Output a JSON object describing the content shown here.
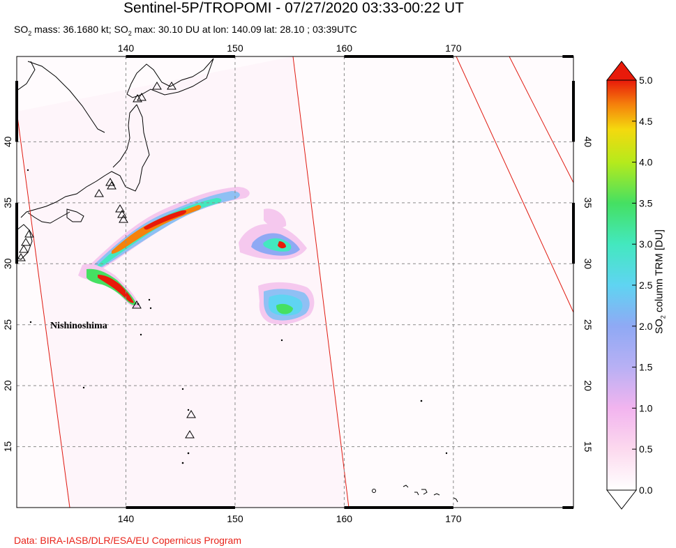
{
  "title": "Sentinel-5P/TROPOMI - 07/27/2020 03:33-00:22 UT",
  "subtitle": {
    "p1": "SO",
    "p1_sub": "2",
    "p2": " mass: 36.1680 kt; SO",
    "p2_sub": "2",
    "p3": " max: 30.10 DU at lon: 140.09 lat: 28.10 ; 03:39UTC"
  },
  "credit": "Data: BIRA-IASB/DLR/ESA/EU Copernicus Program",
  "map": {
    "lon_range": [
      130,
      181
    ],
    "lat_range": [
      10,
      47
    ],
    "lon_ticks": [
      "140",
      "150",
      "160",
      "170"
    ],
    "lon_tick_values": [
      140,
      150,
      160,
      170
    ],
    "lat_ticks": [
      "15",
      "20",
      "25",
      "30",
      "35",
      "40"
    ],
    "lat_tick_values": [
      15,
      20,
      25,
      30,
      35,
      40
    ],
    "volcano_label": "Nishinoshima",
    "volcano_icon": "triangle-icon",
    "orbit_edge_color": "#e01a10"
  },
  "colorbar": {
    "label_p1": "SO",
    "label_sub": "2",
    "label_p2": " column TRM [DU]",
    "ticks": [
      "0.0",
      "0.5",
      "1.0",
      "1.5",
      "2.0",
      "2.5",
      "3.0",
      "3.5",
      "4.0",
      "4.5",
      "5.0"
    ],
    "min": 0.0,
    "max": 5.0
  }
}
